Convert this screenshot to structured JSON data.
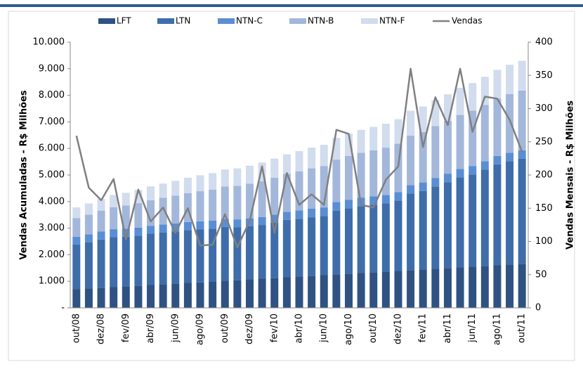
{
  "chart_data": {
    "type": "bar",
    "stacked": true,
    "categories": [
      "out/08",
      null,
      "dez/08",
      null,
      "fev/09",
      null,
      "abr/09",
      null,
      "jun/09",
      null,
      "ago/09",
      null,
      "out/09",
      null,
      "dez/09",
      null,
      "fev/10",
      null,
      "abr/10",
      null,
      "jun/10",
      null,
      "ago/10",
      null,
      "out/10",
      null,
      "dez/10",
      null,
      "fev/11",
      null,
      "abr/11",
      null,
      "jun/11",
      null,
      "ago/11",
      null,
      "out/11"
    ],
    "series": [
      {
        "name": "LFT",
        "color": "#2f5283",
        "values": [
          700,
          730,
          750,
          780,
          810,
          830,
          860,
          890,
          910,
          940,
          960,
          990,
          1020,
          1040,
          1070,
          1100,
          1120,
          1150,
          1180,
          1200,
          1230,
          1260,
          1280,
          1310,
          1340,
          1360,
          1390,
          1420,
          1440,
          1470,
          1500,
          1520,
          1550,
          1580,
          1600,
          1630,
          1650
        ]
      },
      {
        "name": "LTN",
        "color": "#3e6daa",
        "values": [
          1680,
          1740,
          1820,
          1880,
          1870,
          1890,
          1930,
          1950,
          1970,
          1990,
          2000,
          1990,
          2030,
          1990,
          2000,
          2020,
          2090,
          2160,
          2170,
          2210,
          2230,
          2400,
          2470,
          2520,
          2540,
          2570,
          2650,
          2880,
          2960,
          3100,
          3230,
          3390,
          3470,
          3620,
          3800,
          3890,
          3960
        ]
      },
      {
        "name": "NTN-C",
        "color": "#5a8ed4",
        "values": [
          300,
          300,
          300,
          300,
          300,
          300,
          300,
          300,
          300,
          300,
          300,
          300,
          300,
          300,
          300,
          300,
          300,
          300,
          320,
          320,
          320,
          320,
          320,
          320,
          320,
          320,
          320,
          320,
          320,
          320,
          320,
          320,
          320,
          320,
          320,
          320,
          320
        ]
      },
      {
        "name": "NTN-B",
        "color": "#a3b7db",
        "values": [
          700,
          740,
          790,
          830,
          870,
          920,
          960,
          1000,
          1040,
          1090,
          1130,
          1170,
          1220,
          1260,
          1300,
          1350,
          1390,
          1430,
          1470,
          1520,
          1560,
          1600,
          1650,
          1690,
          1730,
          1780,
          1820,
          1860,
          1900,
          1950,
          1990,
          2030,
          2080,
          2120,
          2160,
          2210,
          2250
        ]
      },
      {
        "name": "NTN-F",
        "color": "#d1dcee",
        "values": [
          400,
          420,
          440,
          460,
          480,
          500,
          520,
          540,
          560,
          580,
          600,
          620,
          640,
          660,
          680,
          700,
          720,
          740,
          760,
          780,
          800,
          820,
          840,
          860,
          880,
          900,
          920,
          940,
          960,
          980,
          1000,
          1020,
          1040,
          1060,
          1080,
          1100,
          1120
        ]
      },
      {
        "name": "Vendas",
        "type": "line",
        "axis": "y2",
        "color": "#808080",
        "values": [
          259,
          181,
          162,
          194,
          103,
          178,
          130,
          151,
          113,
          150,
          94,
          95,
          141,
          91,
          131,
          213,
          113,
          203,
          155,
          171,
          155,
          268,
          262,
          155,
          151,
          193,
          213,
          360,
          242,
          317,
          275,
          360,
          265,
          318,
          315,
          283,
          235
        ]
      }
    ],
    "ylabel": "Vendas Acumuladas - R$ Milhões",
    "y2label": "Vendas Mensais - R$ Milhões",
    "ylim": [
      0,
      10000
    ],
    "yticks": [
      {
        "value": 0,
        "label": "-"
      },
      {
        "value": 1000,
        "label": "1.000"
      },
      {
        "value": 2000,
        "label": "2.000"
      },
      {
        "value": 3000,
        "label": "3.000"
      },
      {
        "value": 4000,
        "label": "4.000"
      },
      {
        "value": 5000,
        "label": "5.000"
      },
      {
        "value": 6000,
        "label": "6.000"
      },
      {
        "value": 7000,
        "label": "7.000"
      },
      {
        "value": 8000,
        "label": "8.000"
      },
      {
        "value": 9000,
        "label": "9.000"
      },
      {
        "value": 10000,
        "label": "10.000"
      }
    ],
    "y2lim": [
      0,
      400
    ],
    "y2ticks": [
      0,
      50,
      100,
      150,
      200,
      250,
      300,
      350,
      400
    ],
    "legend": "top"
  }
}
